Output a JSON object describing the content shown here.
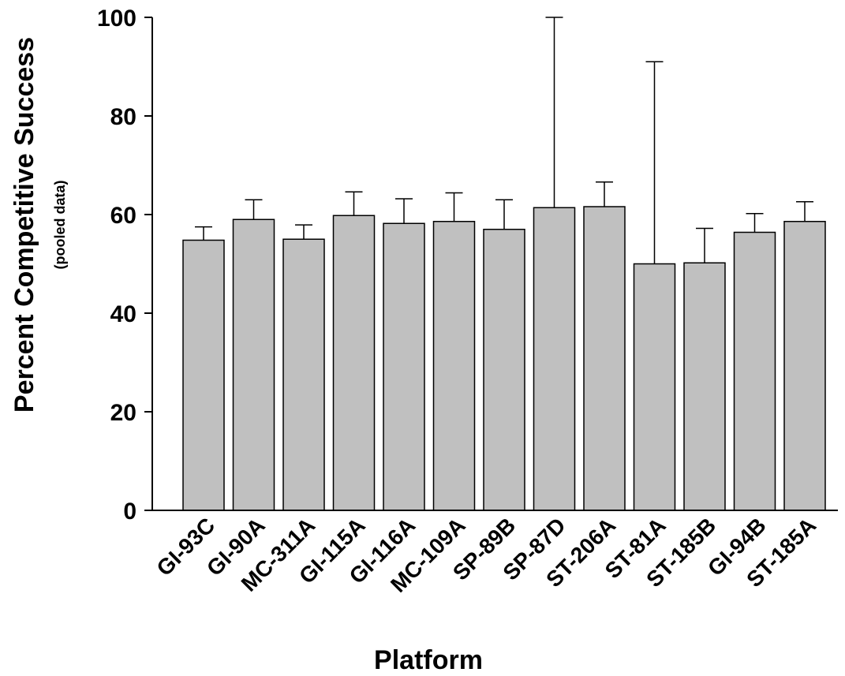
{
  "chart_data": {
    "type": "bar",
    "title": "",
    "xlabel": "Platform",
    "ylabel": "Percent Competitive Success",
    "ylabel_sub": "(pooled data)",
    "ylim": [
      0,
      100
    ],
    "yticks": [
      0,
      20,
      40,
      60,
      80,
      100
    ],
    "grid": false,
    "legend": "none",
    "bar_color": "#c0c0c0",
    "categories": [
      "GI-93C",
      "GI-90A",
      "MC-311A",
      "GI-115A",
      "GI-116A",
      "MC-109A",
      "SP-89B",
      "SP-87D",
      "ST-206A",
      "ST-81A",
      "ST-185B",
      "GI-94B",
      "ST-185A"
    ],
    "values": [
      54.8,
      59.0,
      55.0,
      59.8,
      58.2,
      58.6,
      57.0,
      61.4,
      61.6,
      50.0,
      50.2,
      56.4,
      58.6
    ],
    "error_plus": [
      2.7,
      4.0,
      2.9,
      4.8,
      5.0,
      5.8,
      6.0,
      38.6,
      5.0,
      41.0,
      7.0,
      3.8,
      4.0
    ]
  }
}
